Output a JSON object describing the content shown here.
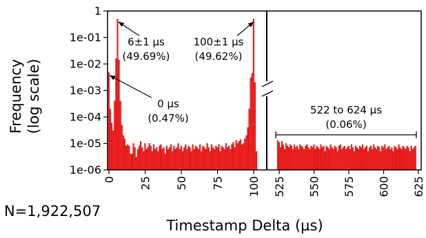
{
  "chart_data": {
    "type": "bar",
    "ylabel_line1": "Frequency",
    "ylabel_line2": "(log scale)",
    "xlabel": "Timestamp Delta (µs)",
    "n_label": "N=1,922,507",
    "yscale": "log",
    "ylim": [
      1e-06,
      1
    ],
    "y_ticks": [
      {
        "value": 1,
        "label": "1"
      },
      {
        "value": 0.1,
        "label": "1e-01"
      },
      {
        "value": 0.01,
        "label": "1e-02"
      },
      {
        "value": 0.001,
        "label": "1e-03"
      },
      {
        "value": 0.0001,
        "label": "1e-04"
      },
      {
        "value": 1e-05,
        "label": "1e-05"
      },
      {
        "value": 1e-06,
        "label": "1e-06"
      }
    ],
    "segments": [
      {
        "xlim": [
          -1,
          109
        ],
        "x_ticks": [
          0,
          25,
          50,
          75,
          100
        ]
      },
      {
        "xlim": [
          516,
          627
        ],
        "x_ticks": [
          525,
          550,
          575,
          600,
          625
        ]
      }
    ],
    "color": "#ff2d2d",
    "series": [
      {
        "x_start": 0,
        "x_step": 1,
        "values": [
          0.0047,
          0.0002,
          6e-05,
          3e-05,
          0.0004,
          0.016,
          0.4969,
          0.014,
          0.0004,
          5e-05,
          2e-05,
          1.5e-05,
          8e-06,
          9e-06,
          8e-06,
          4e-06,
          4e-06,
          1e-05,
          7e-06,
          3e-06,
          6e-06,
          8e-06,
          1.2e-05,
          7e-06,
          5e-06,
          1e-05,
          6e-06,
          7e-06,
          1e-05,
          8e-06,
          5e-06,
          9e-06,
          6e-06,
          7e-06,
          5e-06,
          8e-06,
          9e-06,
          6e-06,
          7e-06,
          4e-06,
          8e-06,
          6e-06,
          7e-06,
          9e-06,
          5e-06,
          8e-06,
          6e-06,
          7e-06,
          1e-05,
          6e-06,
          8e-06,
          5e-06,
          7e-06,
          9e-06,
          6e-06,
          8e-06,
          7e-06,
          5e-06,
          9e-06,
          6e-06,
          8e-06,
          7e-06,
          6e-06,
          9e-06,
          5e-06,
          8e-06,
          7e-06,
          6e-06,
          1e-05,
          7e-06,
          5e-06,
          9e-06,
          7e-06,
          6e-06,
          8e-06,
          7e-06,
          9e-06,
          5e-06,
          8e-06,
          7e-06,
          6e-06,
          1e-05,
          7e-06,
          8e-06,
          6e-06,
          9e-06,
          1.1e-05,
          7e-06,
          1.3e-05,
          1e-05,
          1.2e-05,
          1.4e-05,
          9e-06,
          1e-05,
          1.5e-05,
          2e-05,
          4e-05,
          0.0002,
          0.003,
          0.0045,
          0.4962,
          0.002,
          5e-06
        ]
      },
      {
        "x_start": 524,
        "x_step": 1,
        "values": [
          1.3e-05,
          1.1e-05,
          7e-06,
          1.2e-05,
          9e-06,
          6e-06,
          1e-05,
          8e-06,
          7e-06,
          9e-06,
          8e-06,
          6e-06,
          9e-06,
          7e-06,
          8e-06,
          6e-06,
          9e-06,
          8e-06,
          7e-06,
          6e-06,
          8e-06,
          9e-06,
          7e-06,
          6e-06,
          8e-06,
          7e-06,
          9e-06,
          6e-06,
          8e-06,
          7e-06,
          6e-06,
          9e-06,
          7e-06,
          8e-06,
          5e-06,
          8e-06,
          7e-06,
          6e-06,
          9e-06,
          7e-06,
          6e-06,
          8e-06,
          7e-06,
          5e-06,
          8e-06,
          9e-06,
          6e-06,
          7e-06,
          8e-06,
          6e-06,
          7e-06,
          8e-06,
          6e-06,
          9e-06,
          7e-06,
          5e-06,
          8e-06,
          7e-06,
          6e-06,
          8e-06,
          7e-06,
          9e-06,
          6e-06,
          7e-06,
          8e-06,
          5e-06,
          7e-06,
          8e-06,
          6e-06,
          9e-06,
          7e-06,
          6e-06,
          8e-06,
          7e-06,
          5e-06,
          8e-06,
          7e-06,
          9e-06,
          6e-06,
          7e-06,
          8e-06,
          6e-06,
          7e-06,
          5e-06,
          8e-06,
          7e-06,
          6e-06,
          9e-06,
          7e-06,
          6e-06,
          8e-06,
          7e-06,
          6e-06,
          8e-06,
          7e-06,
          5e-06,
          8e-06,
          6e-06,
          7e-06,
          8e-06
        ]
      }
    ],
    "annotations": [
      {
        "line1": "6±1 µs",
        "line2": "(49.69%)",
        "x": 6,
        "y": 0.4969,
        "segment": 0
      },
      {
        "line1": "100±1 µs",
        "line2": "(49.62%)",
        "x": 100,
        "y": 0.4962,
        "segment": 0
      },
      {
        "line1": "0 µs",
        "line2": "(0.47%)",
        "x": 0,
        "y": 0.0047,
        "segment": 0
      },
      {
        "line1": "522 to 624 µs",
        "line2": "(0.06%)",
        "x_from": 522,
        "x_to": 624,
        "y": 3e-05,
        "segment": 1
      }
    ]
  }
}
